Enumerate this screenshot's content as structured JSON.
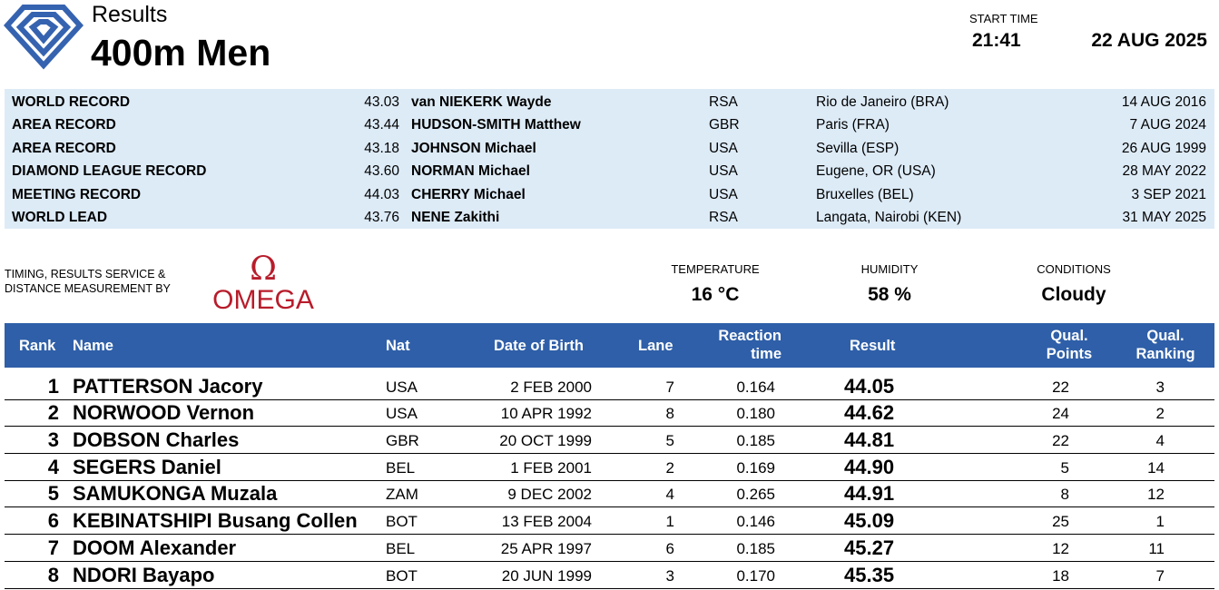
{
  "header": {
    "results_label": "Results",
    "event": "400m Men",
    "start_time_label": "START TIME",
    "start_time": "21:41",
    "date": "22 AUG 2025"
  },
  "records": [
    {
      "type": "WORLD RECORD",
      "mark": "43.03",
      "athlete": "van NIEKERK Wayde",
      "nat": "RSA",
      "venue": "Rio de Janeiro (BRA)",
      "date": "14 AUG 2016"
    },
    {
      "type": "AREA RECORD",
      "mark": "43.44",
      "athlete": "HUDSON-SMITH Matthew",
      "nat": "GBR",
      "venue": "Paris (FRA)",
      "date": "7 AUG 2024"
    },
    {
      "type": "AREA RECORD",
      "mark": "43.18",
      "athlete": "JOHNSON Michael",
      "nat": "USA",
      "venue": "Sevilla (ESP)",
      "date": "26 AUG 1999"
    },
    {
      "type": "DIAMOND LEAGUE RECORD",
      "mark": "43.60",
      "athlete": "NORMAN Michael",
      "nat": "USA",
      "venue": "Eugene, OR (USA)",
      "date": "28 MAY 2022"
    },
    {
      "type": "MEETING RECORD",
      "mark": "44.03",
      "athlete": "CHERRY Michael",
      "nat": "USA",
      "venue": "Bruxelles (BEL)",
      "date": "3 SEP 2021"
    },
    {
      "type": "WORLD LEAD",
      "mark": "43.76",
      "athlete": "NENE Zakithi",
      "nat": "RSA",
      "venue": "Langata, Nairobi (KEN)",
      "date": "31 MAY 2025"
    }
  ],
  "timing": {
    "line1": "TIMING, RESULTS SERVICE &",
    "line2": "DISTANCE MEASUREMENT BY",
    "brand": "OMEGA"
  },
  "conditions": {
    "temperature_label": "TEMPERATURE",
    "temperature": "16 °C",
    "humidity_label": "HUMIDITY",
    "humidity": "58 %",
    "conditions_label": "CONDITIONS",
    "conditions": "Cloudy"
  },
  "columns": {
    "rank": "Rank",
    "name": "Name",
    "nat": "Nat",
    "dob": "Date of Birth",
    "lane": "Lane",
    "reaction_1": "Reaction",
    "reaction_2": "time",
    "result": "Result",
    "qp_1": "Qual.",
    "qp_2": "Points",
    "qr_1": "Qual.",
    "qr_2": "Ranking"
  },
  "results": [
    {
      "rank": "1",
      "name": "PATTERSON Jacory",
      "nat": "USA",
      "dob": "2 FEB 2000",
      "lane": "7",
      "reaction": "0.164",
      "result": "44.05",
      "qual_points": "22",
      "qual_ranking": "3"
    },
    {
      "rank": "2",
      "name": "NORWOOD Vernon",
      "nat": "USA",
      "dob": "10 APR 1992",
      "lane": "8",
      "reaction": "0.180",
      "result": "44.62",
      "qual_points": "24",
      "qual_ranking": "2"
    },
    {
      "rank": "3",
      "name": "DOBSON Charles",
      "nat": "GBR",
      "dob": "20 OCT 1999",
      "lane": "5",
      "reaction": "0.185",
      "result": "44.81",
      "qual_points": "22",
      "qual_ranking": "4"
    },
    {
      "rank": "4",
      "name": "SEGERS Daniel",
      "nat": "BEL",
      "dob": "1 FEB 2001",
      "lane": "2",
      "reaction": "0.169",
      "result": "44.90",
      "qual_points": "5",
      "qual_ranking": "14"
    },
    {
      "rank": "5",
      "name": "SAMUKONGA Muzala",
      "nat": "ZAM",
      "dob": "9 DEC 2002",
      "lane": "4",
      "reaction": "0.265",
      "result": "44.91",
      "qual_points": "8",
      "qual_ranking": "12"
    },
    {
      "rank": "6",
      "name": "KEBINATSHIPI Busang Collen",
      "nat": "BOT",
      "dob": "13 FEB 2004",
      "lane": "1",
      "reaction": "0.146",
      "result": "45.09",
      "qual_points": "25",
      "qual_ranking": "1"
    },
    {
      "rank": "7",
      "name": "DOOM Alexander",
      "nat": "BEL",
      "dob": "25 APR 1997",
      "lane": "6",
      "reaction": "0.185",
      "result": "45.27",
      "qual_points": "12",
      "qual_ranking": "11"
    },
    {
      "rank": "8",
      "name": "NDORI Bayapo",
      "nat": "BOT",
      "dob": "20 JUN 1999",
      "lane": "3",
      "reaction": "0.170",
      "result": "45.35",
      "qual_points": "18",
      "qual_ranking": "7"
    }
  ],
  "colors": {
    "header_blue": "#2f5fa8",
    "records_bg": "#ddebf7",
    "omega_red": "#b81c2b",
    "logo_blue": "#3563b0"
  },
  "icons": {
    "logo": "diamond-league-logo",
    "omega": "omega-logo"
  }
}
